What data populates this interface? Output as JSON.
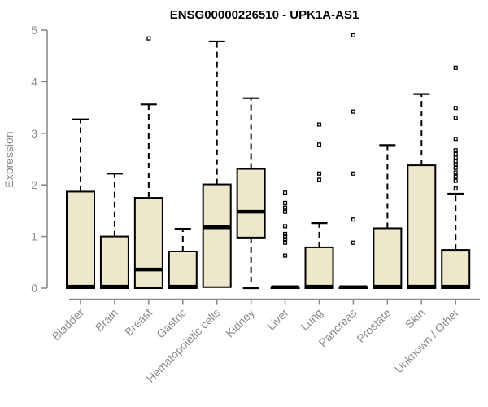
{
  "chart_data": {
    "type": "boxplot",
    "title": "ENSG00000226510 - UPK1A-AS1",
    "ylabel": "Expression",
    "xlabel": "",
    "ylim": [
      0,
      5
    ],
    "yticks": [
      0,
      1,
      2,
      3,
      4,
      5
    ],
    "grid": false,
    "legend": "none",
    "categories": [
      "Bladder",
      "Brain",
      "Breast",
      "Gastric",
      "Hematopoietic cells",
      "Kidney",
      "Liver",
      "Lung",
      "Pancreas",
      "Prostate",
      "Skin",
      "Unknown / Other"
    ],
    "series": [
      {
        "name": "Bladder",
        "q1": 0,
        "median": 0.03,
        "q3": 1.87,
        "whisker_low": 0,
        "whisker_high": 3.27,
        "outliers": []
      },
      {
        "name": "Brain",
        "q1": 0,
        "median": 0.03,
        "q3": 1.0,
        "whisker_low": 0,
        "whisker_high": 2.22,
        "outliers": []
      },
      {
        "name": "Breast",
        "q1": 0,
        "median": 0.36,
        "q3": 1.75,
        "whisker_low": 0,
        "whisker_high": 3.56,
        "outliers": [
          4.84
        ]
      },
      {
        "name": "Gastric",
        "q1": 0,
        "median": 0.03,
        "q3": 0.71,
        "whisker_low": 0,
        "whisker_high": 1.15,
        "outliers": []
      },
      {
        "name": "Hematopoietic cells",
        "q1": 0.02,
        "median": 1.18,
        "q3": 2.01,
        "whisker_low": 0.02,
        "whisker_high": 4.78,
        "outliers": []
      },
      {
        "name": "Kidney",
        "q1": 0.98,
        "median": 1.48,
        "q3": 2.31,
        "whisker_low": 0,
        "whisker_high": 3.68,
        "outliers": []
      },
      {
        "name": "Liver",
        "q1": 0,
        "median": 0.02,
        "q3": 0.02,
        "whisker_low": 0,
        "whisker_high": 0.02,
        "outliers": [
          0.63,
          0.88,
          0.95,
          1.0,
          1.05,
          1.2,
          1.48,
          1.56,
          1.65,
          1.85
        ]
      },
      {
        "name": "Lung",
        "q1": 0,
        "median": 0.03,
        "q3": 0.79,
        "whisker_low": 0,
        "whisker_high": 1.26,
        "outliers": [
          2.1,
          2.22,
          2.78,
          3.17
        ]
      },
      {
        "name": "Pancreas",
        "q1": 0,
        "median": 0.02,
        "q3": 0.02,
        "whisker_low": 0,
        "whisker_high": 0.02,
        "outliers": [
          0.88,
          1.33,
          2.22,
          3.42,
          4.9
        ]
      },
      {
        "name": "Prostate",
        "q1": 0,
        "median": 0.03,
        "q3": 1.16,
        "whisker_low": 0,
        "whisker_high": 2.77,
        "outliers": []
      },
      {
        "name": "Skin",
        "q1": 0,
        "median": 0.03,
        "q3": 2.38,
        "whisker_low": 0,
        "whisker_high": 3.76,
        "outliers": []
      },
      {
        "name": "Unknown / Other",
        "q1": 0,
        "median": 0.03,
        "q3": 0.74,
        "whisker_low": 0,
        "whisker_high": 1.83,
        "outliers": [
          1.93,
          2.08,
          2.16,
          2.24,
          2.33,
          2.4,
          2.46,
          2.53,
          2.6,
          2.67,
          2.89,
          3.3,
          3.49,
          4.27
        ]
      }
    ],
    "colors": {
      "box_fill": "#EDE7CB",
      "box_border": "#000000",
      "median": "#000000",
      "whisker": "#000000",
      "outlier": "#000000",
      "axis": "#8A8A8A",
      "tick_label": "#8A8A8A",
      "title": "#000000",
      "background": "#FFFFFF"
    }
  }
}
